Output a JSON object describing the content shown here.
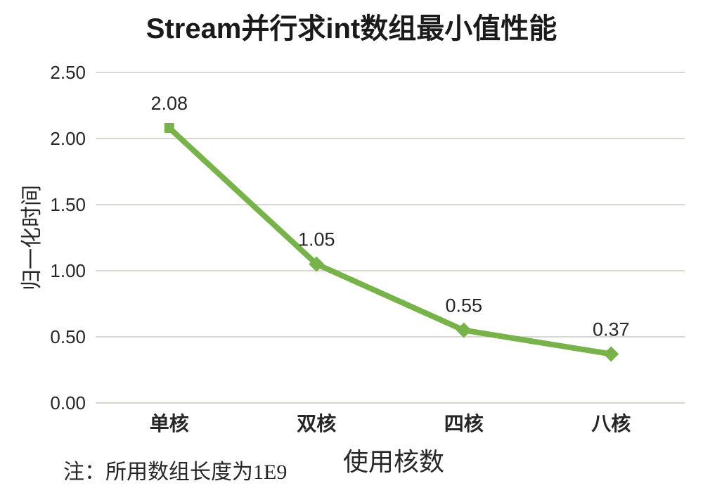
{
  "chart_data": {
    "type": "line",
    "title": "Stream并行求int数组最小值性能",
    "categories": [
      "单核",
      "双核",
      "四核",
      "八核"
    ],
    "values": [
      2.08,
      1.05,
      0.55,
      0.37
    ],
    "data_labels": [
      "2.08",
      "1.05",
      "0.55",
      "0.37"
    ],
    "xlabel": "使用核数",
    "ylabel": "归一化时间",
    "ylim": [
      0,
      2.5
    ],
    "yticks": [
      0.0,
      0.5,
      1.0,
      1.5,
      2.0,
      2.5
    ],
    "ytick_labels": [
      "0.00",
      "0.50",
      "1.00",
      "1.50",
      "2.00",
      "2.50"
    ],
    "grid": "horizontal",
    "legend": "none",
    "note": "注：所用数组长度为1E9",
    "series_name": "归一化时间",
    "line_color": "#77b24a",
    "grid_color": "#d9d6d0",
    "text_color": "#262626",
    "title_color": "#1a1a1a"
  }
}
